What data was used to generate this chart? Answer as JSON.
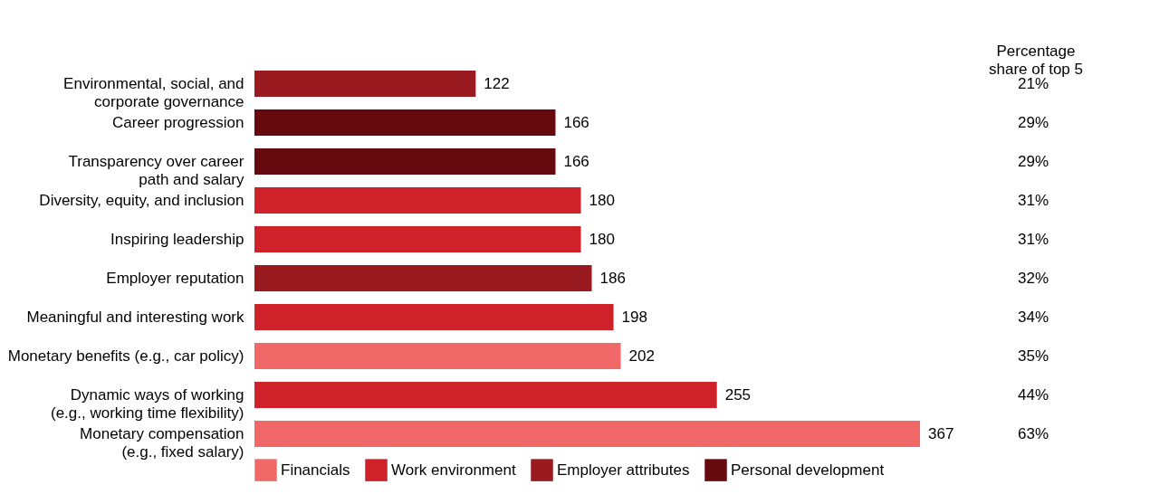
{
  "chart_data": {
    "type": "bar",
    "orientation": "horizontal",
    "data_labels": true,
    "legend": "bottom",
    "categories": [
      "Environmental, social, and\ncorporate governance",
      "Career progression",
      "Transparency over career\npath and salary",
      "Diversity, equity, and inclusion",
      "Inspiring leadership",
      "Employer reputation",
      "Meaningful and interesting work",
      "Monetary benefits (e.g., car policy)",
      "Dynamic ways of working\n(e.g., working time flexibility)",
      "Monetary compensation\n(e.g., fixed salary)"
    ],
    "series": [
      {
        "name": "Financials",
        "color": "#f06868",
        "values": [
          null,
          null,
          null,
          null,
          null,
          null,
          null,
          202,
          null,
          367
        ]
      },
      {
        "name": "Work environment",
        "color": "#cf2129",
        "values": [
          null,
          null,
          null,
          180,
          180,
          null,
          198,
          null,
          255,
          null
        ]
      },
      {
        "name": "Employer attributes",
        "color": "#991b20",
        "values": [
          122,
          null,
          null,
          null,
          null,
          186,
          null,
          null,
          null,
          null
        ]
      },
      {
        "name": "Personal development",
        "color": "#660a0f",
        "values": [
          null,
          166,
          166,
          null,
          null,
          null,
          null,
          null,
          null,
          null
        ]
      }
    ],
    "annotations": [
      "Percentage share of top 5",
      "21%",
      "29%",
      "29%",
      "31%",
      "31%",
      "32%",
      "34%",
      "35%",
      "44%",
      "63%"
    ]
  }
}
